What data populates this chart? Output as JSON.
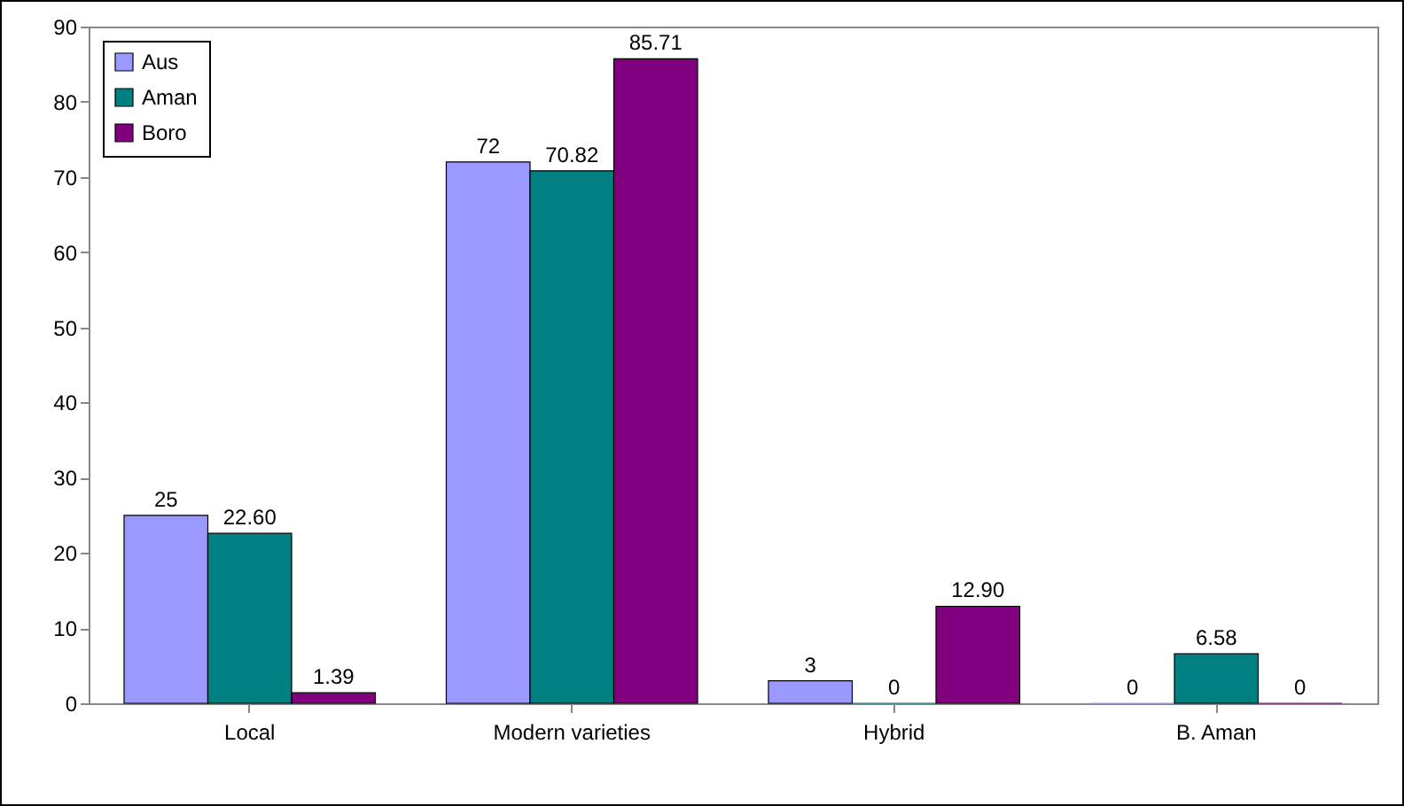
{
  "chart_data": {
    "type": "bar",
    "categories": [
      "Local",
      "Modern varieties",
      "Hybrid",
      "B. Aman"
    ],
    "series": [
      {
        "name": "Aus",
        "color": "#9999ff",
        "values": [
          25,
          72,
          3,
          0
        ],
        "value_labels": [
          "25",
          "72",
          "3",
          "0"
        ]
      },
      {
        "name": "Aman",
        "color": "#008080",
        "values": [
          22.6,
          70.82,
          0,
          6.58
        ],
        "value_labels": [
          "22.60",
          "70.82",
          "0",
          "6.58"
        ]
      },
      {
        "name": "Boro",
        "color": "#800080",
        "values": [
          1.39,
          85.71,
          12.9,
          0
        ],
        "value_labels": [
          "1.39",
          "85.71",
          "12.90",
          "0"
        ]
      }
    ],
    "ylim": [
      0,
      90
    ],
    "yticks": [
      0,
      10,
      20,
      30,
      40,
      50,
      60,
      70,
      80,
      90
    ],
    "grid": false,
    "legend": "top left"
  }
}
